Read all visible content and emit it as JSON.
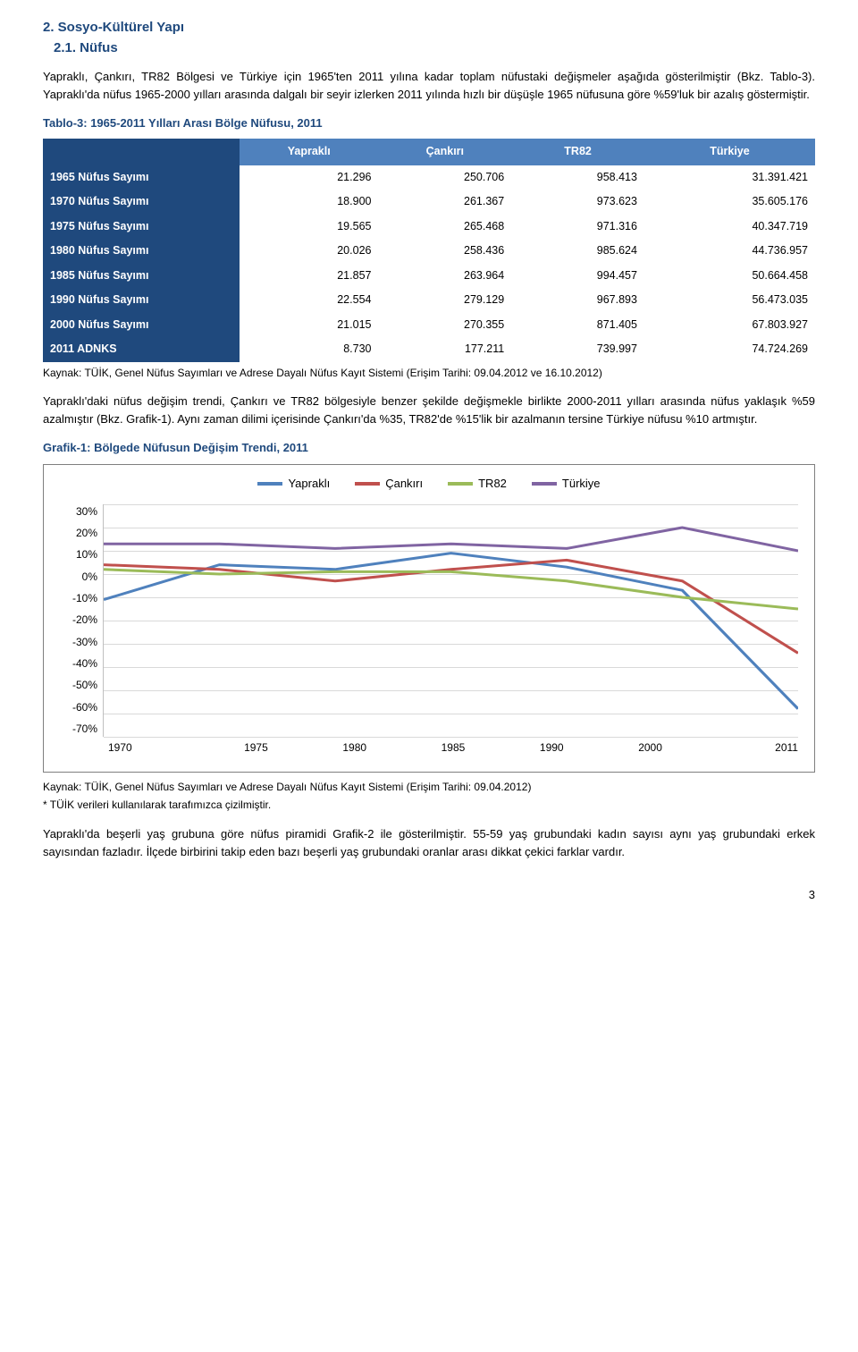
{
  "section_title": "2. Sosyo-Kültürel Yapı",
  "subsection_title": "2.1. Nüfus",
  "intro_para_1": "Yapraklı, Çankırı, TR82 Bölgesi ve Türkiye için 1965'ten 2011 yılına kadar toplam nüfustaki değişmeler aşağıda gösterilmiştir (Bkz. Tablo-3). Yapraklı'da nüfus 1965-2000 yılları arasında dalgalı bir seyir izlerken 2011 yılında hızlı bir düşüşle 1965 nüfusuna göre %59'luk bir azalış göstermiştir.",
  "table_caption": "Tablo-3: 1965-2011 Yılları Arası Bölge Nüfusu, 2011",
  "table": {
    "columns": [
      "Yapraklı",
      "Çankırı",
      "TR82",
      "Türkiye"
    ],
    "header_bg": "#4f81bd",
    "rowhead_bg": "#1f497d",
    "rows": [
      {
        "label": "1965 Nüfus Sayımı",
        "cells": [
          "21.296",
          "250.706",
          "958.413",
          "31.391.421"
        ]
      },
      {
        "label": "1970 Nüfus Sayımı",
        "cells": [
          "18.900",
          "261.367",
          "973.623",
          "35.605.176"
        ]
      },
      {
        "label": "1975 Nüfus Sayımı",
        "cells": [
          "19.565",
          "265.468",
          "971.316",
          "40.347.719"
        ]
      },
      {
        "label": "1980 Nüfus Sayımı",
        "cells": [
          "20.026",
          "258.436",
          "985.624",
          "44.736.957"
        ]
      },
      {
        "label": "1985 Nüfus Sayımı",
        "cells": [
          "21.857",
          "263.964",
          "994.457",
          "50.664.458"
        ]
      },
      {
        "label": "1990 Nüfus Sayımı",
        "cells": [
          "22.554",
          "279.129",
          "967.893",
          "56.473.035"
        ]
      },
      {
        "label": "2000 Nüfus Sayımı",
        "cells": [
          "21.015",
          "270.355",
          "871.405",
          "67.803.927"
        ]
      },
      {
        "label": "2011 ADNKS",
        "cells": [
          "8.730",
          "177.211",
          "739.997",
          "74.724.269"
        ]
      }
    ]
  },
  "table_source": "Kaynak: TÜİK, Genel Nüfus Sayımları ve Adrese Dayalı Nüfus Kayıt Sistemi (Erişim Tarihi: 09.04.2012 ve 16.10.2012)",
  "para_after_table": "Yapraklı'daki nüfus değişim trendi, Çankırı ve TR82 bölgesiyle benzer şekilde değişmekle birlikte 2000-2011 yılları arasında nüfus yaklaşık %59 azalmıştır (Bkz. Grafik-1). Aynı zaman dilimi içerisinde Çankırı'da %35, TR82'de %15'lik bir azalmanın tersine Türkiye nüfusu %10 artmıştır.",
  "chart_caption": "Grafik-1: Bölgede Nüfusun Değişim Trendi, 2011",
  "chart": {
    "type": "line",
    "x_categories": [
      "1970",
      "1975",
      "1980",
      "1985",
      "1990",
      "2000",
      "2011"
    ],
    "y_ticks": [
      "30%",
      "20%",
      "10%",
      "0%",
      "-10%",
      "-20%",
      "-30%",
      "-40%",
      "-50%",
      "-60%",
      "-70%"
    ],
    "ylim": [
      -70,
      30
    ],
    "series": [
      {
        "name": "Yapraklı",
        "color": "#4f81bd",
        "values": [
          -11,
          4,
          2,
          9,
          3,
          -7,
          -58
        ]
      },
      {
        "name": "Çankırı",
        "color": "#c0504d",
        "values": [
          4,
          2,
          -3,
          2,
          6,
          -3,
          -34
        ]
      },
      {
        "name": "TR82",
        "color": "#9bbb59",
        "values": [
          2,
          0,
          1,
          1,
          -3,
          -10,
          -15
        ]
      },
      {
        "name": "Türkiye",
        "color": "#8064a2",
        "values": [
          13,
          13,
          11,
          13,
          11,
          20,
          10
        ]
      }
    ],
    "line_width": 3,
    "background_color": "#ffffff",
    "grid_color": "#d9d9d9",
    "border_color": "#7f7f7f"
  },
  "chart_source_1": "Kaynak: TÜİK, Genel Nüfus Sayımları ve Adrese Dayalı Nüfus Kayıt Sistemi (Erişim Tarihi: 09.04.2012)",
  "chart_source_2": "* TÜİK verileri kullanılarak tarafımızca çizilmiştir.",
  "closing_para": "Yapraklı'da beşerli yaş grubuna göre nüfus piramidi Grafik-2 ile gösterilmiştir. 55-59 yaş grubundaki kadın sayısı aynı yaş grubundaki erkek sayısından fazladır. İlçede birbirini takip eden bazı beşerli yaş grubundaki oranlar arası dikkat çekici farklar vardır.",
  "page_number": "3"
}
